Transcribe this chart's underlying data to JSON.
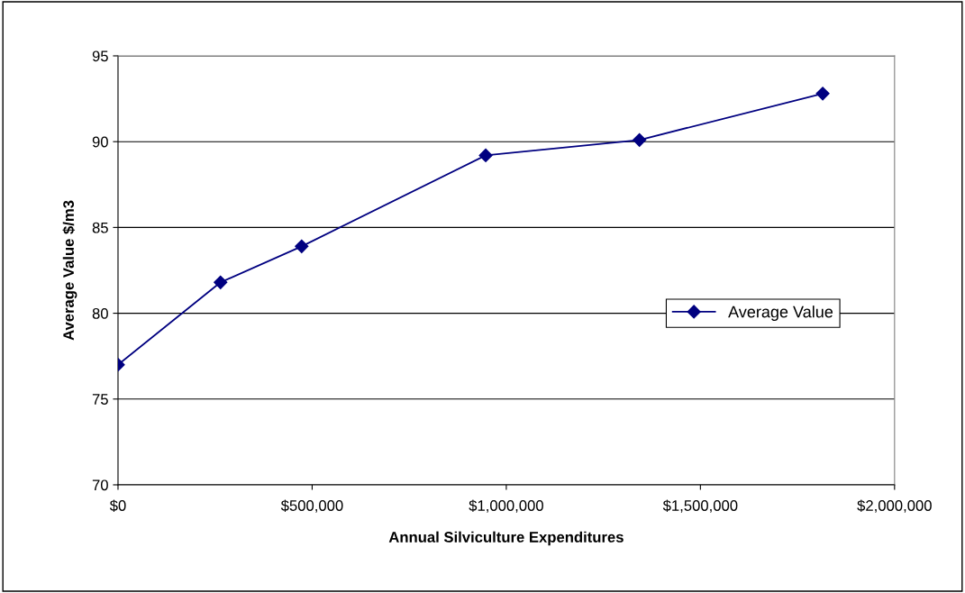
{
  "chart_data": {
    "type": "line",
    "xlabel": "Annual Silviculture Expenditures",
    "ylabel": "Average Value $/m3",
    "x": [
      0,
      264000,
      473000,
      947000,
      1343000,
      1815000
    ],
    "series": [
      {
        "name": "Average Value",
        "color": "#000080",
        "values": [
          77.0,
          81.8,
          83.9,
          89.2,
          90.1,
          92.8
        ]
      }
    ],
    "xlim": [
      0,
      2000000
    ],
    "xticks": [
      {
        "value": 0,
        "label": "$0"
      },
      {
        "value": 500000,
        "label": "$500,000"
      },
      {
        "value": 1000000,
        "label": "$1,000,000"
      },
      {
        "value": 1500000,
        "label": "$1,500,000"
      },
      {
        "value": 2000000,
        "label": "$2,000,000"
      }
    ],
    "ylim": [
      70,
      95
    ],
    "yticks": [
      70,
      75,
      80,
      85,
      90,
      95
    ],
    "grid": "y",
    "legend": "right",
    "marker": "diamond",
    "line_style": "solid"
  }
}
